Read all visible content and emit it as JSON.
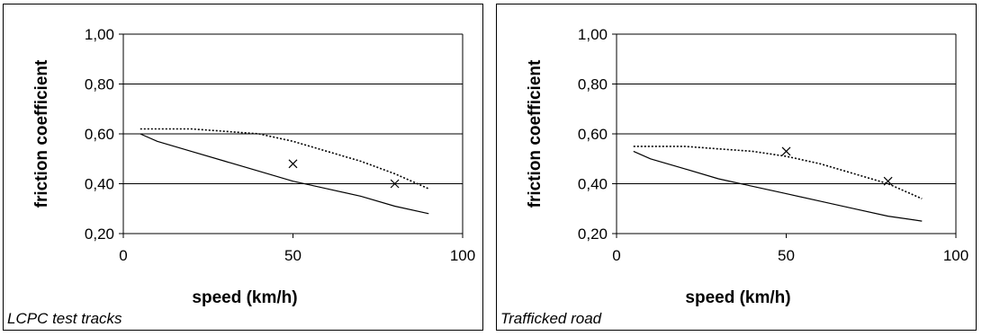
{
  "chart_data": [
    {
      "type": "line",
      "caption": "LCPC test tracks",
      "xlabel": "speed (km/h)",
      "ylabel": "friction coefficient",
      "xlim": [
        0,
        100
      ],
      "ylim": [
        0.2,
        1.0
      ],
      "x_ticks": [
        0,
        50,
        100
      ],
      "x_tick_labels": [
        "0",
        "50",
        "100"
      ],
      "y_ticks": [
        0.2,
        0.4,
        0.6,
        0.8,
        1.0
      ],
      "y_tick_labels": [
        "0,20",
        "0,40",
        "0,60",
        "0,80",
        "1,00"
      ],
      "grid": "horizontal",
      "legend": "none",
      "series": [
        {
          "style": "solid",
          "x": [
            5,
            10,
            20,
            30,
            40,
            50,
            60,
            70,
            80,
            90
          ],
          "y": [
            0.6,
            0.57,
            0.53,
            0.49,
            0.45,
            0.41,
            0.38,
            0.35,
            0.31,
            0.28
          ]
        },
        {
          "style": "dotted",
          "x": [
            5,
            10,
            20,
            30,
            40,
            50,
            60,
            70,
            80,
            90
          ],
          "y": [
            0.62,
            0.62,
            0.62,
            0.61,
            0.6,
            0.57,
            0.53,
            0.49,
            0.44,
            0.38
          ]
        },
        {
          "style": "markers",
          "marker": "x",
          "x": [
            50,
            80
          ],
          "y": [
            0.48,
            0.4
          ]
        }
      ]
    },
    {
      "type": "line",
      "caption": "Trafficked road",
      "xlabel": "speed (km/h)",
      "ylabel": "friction coefficient",
      "xlim": [
        0,
        100
      ],
      "ylim": [
        0.2,
        1.0
      ],
      "x_ticks": [
        0,
        50,
        100
      ],
      "x_tick_labels": [
        "0",
        "50",
        "100"
      ],
      "y_ticks": [
        0.2,
        0.4,
        0.6,
        0.8,
        1.0
      ],
      "y_tick_labels": [
        "0,20",
        "0,40",
        "0,60",
        "0,80",
        "1,00"
      ],
      "grid": "horizontal",
      "legend": "none",
      "series": [
        {
          "style": "solid",
          "x": [
            5,
            10,
            20,
            30,
            40,
            50,
            60,
            70,
            80,
            90
          ],
          "y": [
            0.53,
            0.5,
            0.46,
            0.42,
            0.39,
            0.36,
            0.33,
            0.3,
            0.27,
            0.25
          ]
        },
        {
          "style": "dotted",
          "x": [
            5,
            10,
            20,
            30,
            40,
            50,
            60,
            70,
            80,
            90
          ],
          "y": [
            0.55,
            0.55,
            0.55,
            0.54,
            0.53,
            0.51,
            0.48,
            0.44,
            0.4,
            0.34
          ]
        },
        {
          "style": "markers",
          "marker": "x",
          "x": [
            50,
            80
          ],
          "y": [
            0.53,
            0.41
          ]
        }
      ]
    }
  ]
}
